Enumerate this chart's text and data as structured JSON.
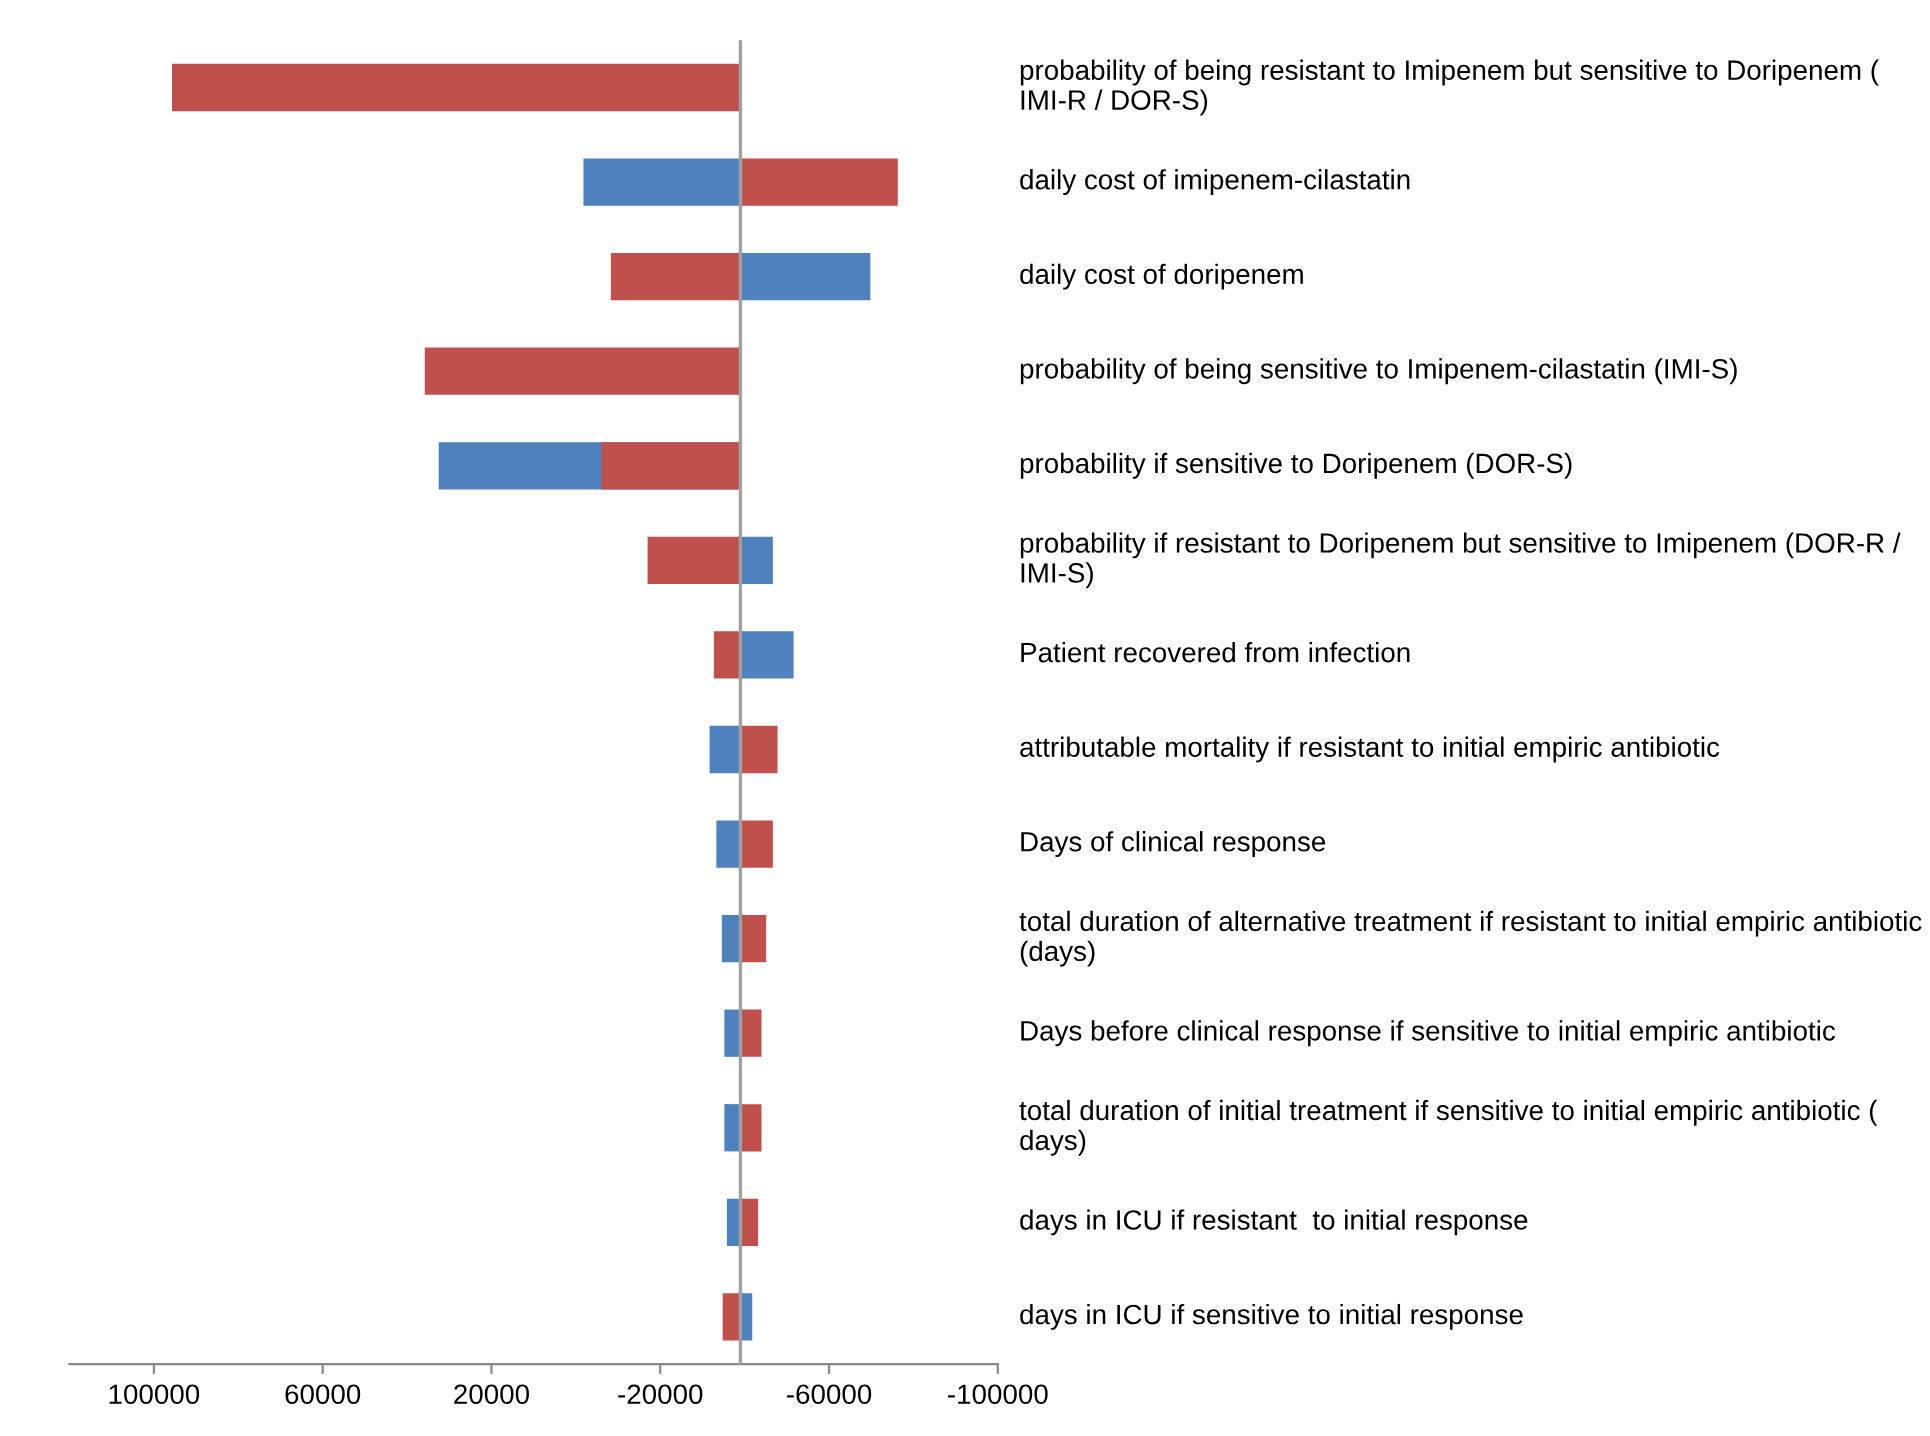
{
  "chart_data": {
    "type": "bar",
    "orientation": "horizontal",
    "categories": [
      "probability of being resistant to Imipenem but sensitive to Doripenem ( IMI-R / DOR-S)",
      "daily cost of imipenem-cilastatin",
      "daily cost of doripenem",
      "probability of being sensitive to Imipenem-cilastatin (IMI-S)",
      "probability if sensitive to Doripenem (DOR-S)",
      "probability if resistant to Doripenem but sensitive to Imipenem (DOR-R / IMI-S)",
      "Patient recovered from infection",
      "attributable mortality if resistant to initial empiric antibiotic",
      "Days of clinical response",
      "total duration of alternative treatment if resistant to initial empiric antibiotic (days)",
      "Days before clinical response if sensitive to initial empiric antibiotic",
      "total duration of initial treatment if sensitive to initial empiric antibiotic ( days)",
      "days in ICU if resistant  to initial response",
      "days in ICU if sensitive to initial response"
    ],
    "series": [
      {
        "color": "#4f81bd",
        "base": [
          null,
          -39000,
          -39000,
          null,
          -39000,
          -39000,
          -39000,
          -39000,
          -39000,
          -39000,
          -39000,
          -39000,
          -39000,
          -39000
        ],
        "values": [
          null,
          37200,
          -30800,
          null,
          71500,
          -7700,
          -12600,
          7300,
          5700,
          4400,
          3800,
          3800,
          3200,
          -2800
        ]
      },
      {
        "color": "#c0504d",
        "base": [
          -39000,
          -39000,
          -39000,
          -39000,
          -39000,
          -39000,
          -39000,
          -39000,
          -39000,
          -39000,
          -39000,
          -39000,
          -39000,
          -39000
        ],
        "values": [
          134700,
          -37300,
          30700,
          74800,
          32900,
          22000,
          6300,
          -8800,
          -7700,
          -6100,
          -5000,
          -5000,
          -4200,
          4200
        ]
      }
    ],
    "xlim": [
      120000,
      -100000
    ],
    "xticks": [
      100000,
      60000,
      20000,
      -20000,
      -60000,
      -100000
    ],
    "ref_lines": [
      {
        "axis": "x",
        "value": -39000,
        "color": "#a0a0a0"
      }
    ],
    "grid": false,
    "legend": false
  }
}
